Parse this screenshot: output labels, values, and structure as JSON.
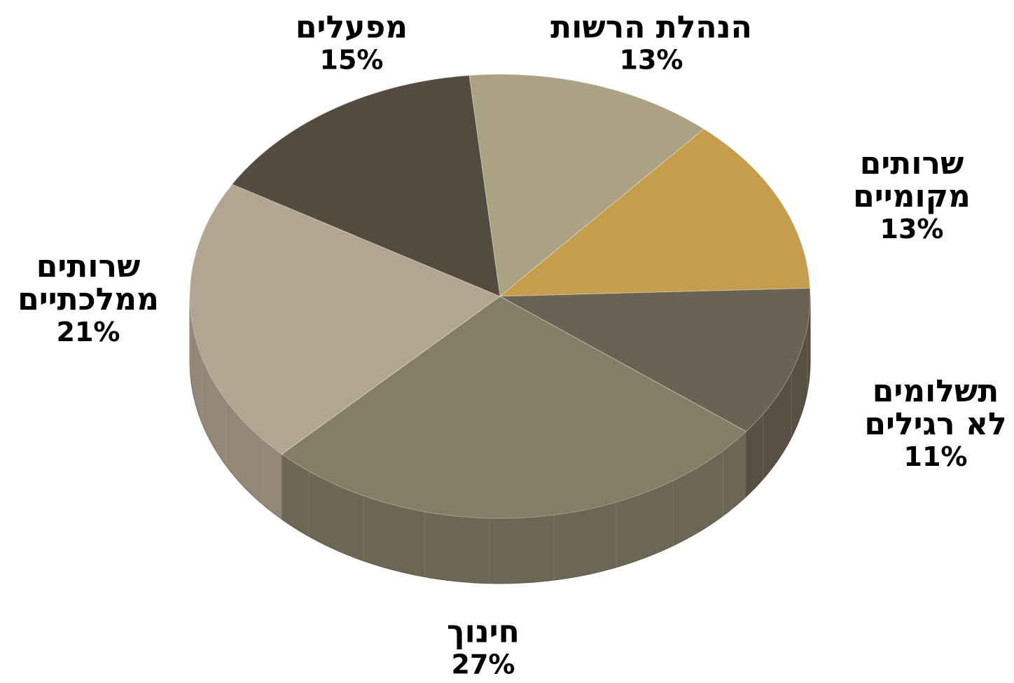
{
  "chart_data": {
    "type": "pie",
    "title": "",
    "start_angle_deg": 264.3,
    "slices": [
      {
        "label_lines": [
          "הנהלת הרשות"
        ],
        "percent_label": "13%",
        "value": 13,
        "color": "#aaa283"
      },
      {
        "label_lines": [
          "שרותים",
          "מקומיים"
        ],
        "percent_label": "13%",
        "value": 13,
        "color": "#c59d4d"
      },
      {
        "label_lines": [
          "תשלומים",
          "לא רגילים"
        ],
        "percent_label": "11%",
        "value": 11,
        "color": "#6b6253"
      },
      {
        "label_lines": [
          "חינוך"
        ],
        "percent_label": "27%",
        "value": 27,
        "color": "#847e66"
      },
      {
        "label_lines": [
          "שרותים",
          "ממלכתיים"
        ],
        "percent_label": "21%",
        "value": 21,
        "color": "#b3a591"
      },
      {
        "label_lines": [
          "מפעלים"
        ],
        "percent_label": "15%",
        "value": 15,
        "color": "#534a40"
      }
    ]
  }
}
